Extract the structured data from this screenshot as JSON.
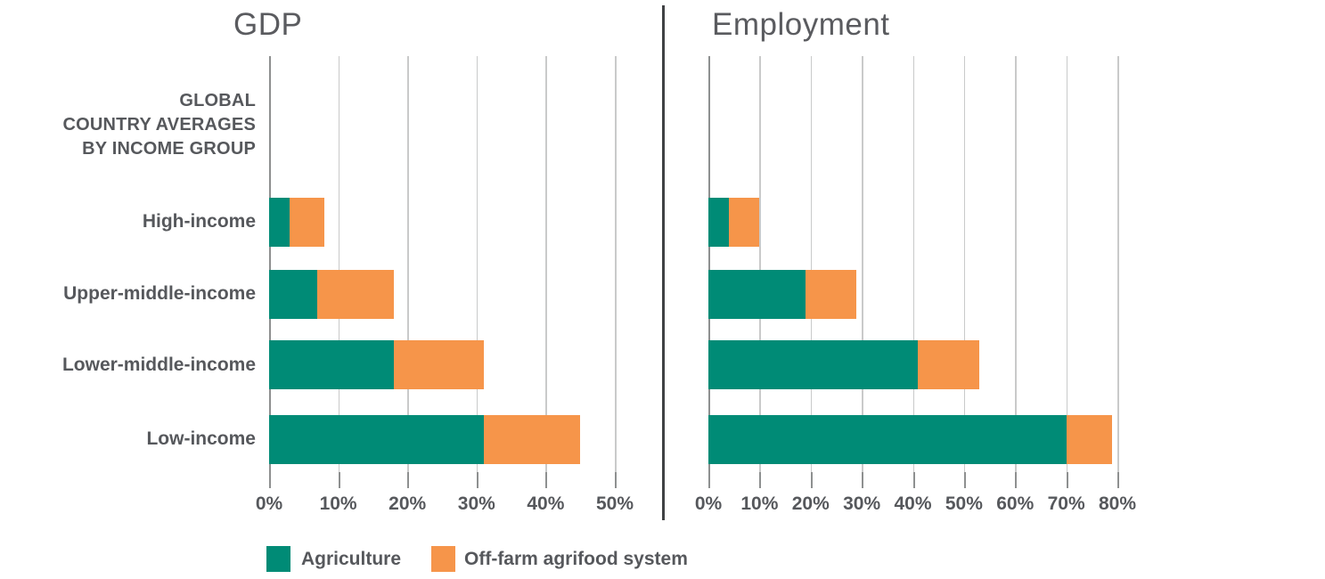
{
  "label_block": {
    "lines": [
      "GLOBAL",
      "COUNTRY AVERAGES",
      "BY INCOME GROUP"
    ]
  },
  "legend": {
    "items": [
      {
        "label": "Agriculture",
        "color": "#008B76"
      },
      {
        "label": "Off-farm agrifood system",
        "color": "#F6954A"
      }
    ]
  },
  "colors": {
    "agriculture": "#008B76",
    "off_farm": "#F6954A",
    "text": "#56585C",
    "gridline": "#C9CACA",
    "axis_line": "#8E9090",
    "divider": "#404244"
  },
  "chart_data": [
    {
      "type": "bar",
      "title": "GDP",
      "orientation": "horizontal",
      "stacked": true,
      "grid": true,
      "unit": "%",
      "categories": [
        "High-income",
        "Upper-middle-income",
        "Lower-middle-income",
        "Low-income"
      ],
      "series": [
        {
          "name": "Agriculture",
          "color": "#008B76",
          "values": [
            3,
            7,
            18,
            31
          ]
        },
        {
          "name": "Off-farm agrifood system",
          "color": "#F6954A",
          "values": [
            5,
            11,
            13,
            14
          ]
        }
      ],
      "xlim": [
        0,
        50
      ],
      "ticks": [
        "0%",
        "10%",
        "20%",
        "30%",
        "40%",
        "50%"
      ]
    },
    {
      "type": "bar",
      "title": "Employment",
      "orientation": "horizontal",
      "stacked": true,
      "grid": true,
      "unit": "%",
      "categories": [
        "High-income",
        "Upper-middle-income",
        "Lower-middle-income",
        "Low-income"
      ],
      "series": [
        {
          "name": "Agriculture",
          "color": "#008B76",
          "values": [
            4,
            19,
            41,
            70
          ]
        },
        {
          "name": "Off-farm agrifood system",
          "color": "#F6954A",
          "values": [
            6,
            10,
            12,
            9
          ]
        }
      ],
      "xlim": [
        0,
        80
      ],
      "ticks": [
        "0%",
        "10%",
        "20%",
        "30%",
        "40%",
        "50%",
        "60%",
        "70%",
        "80%"
      ]
    }
  ]
}
